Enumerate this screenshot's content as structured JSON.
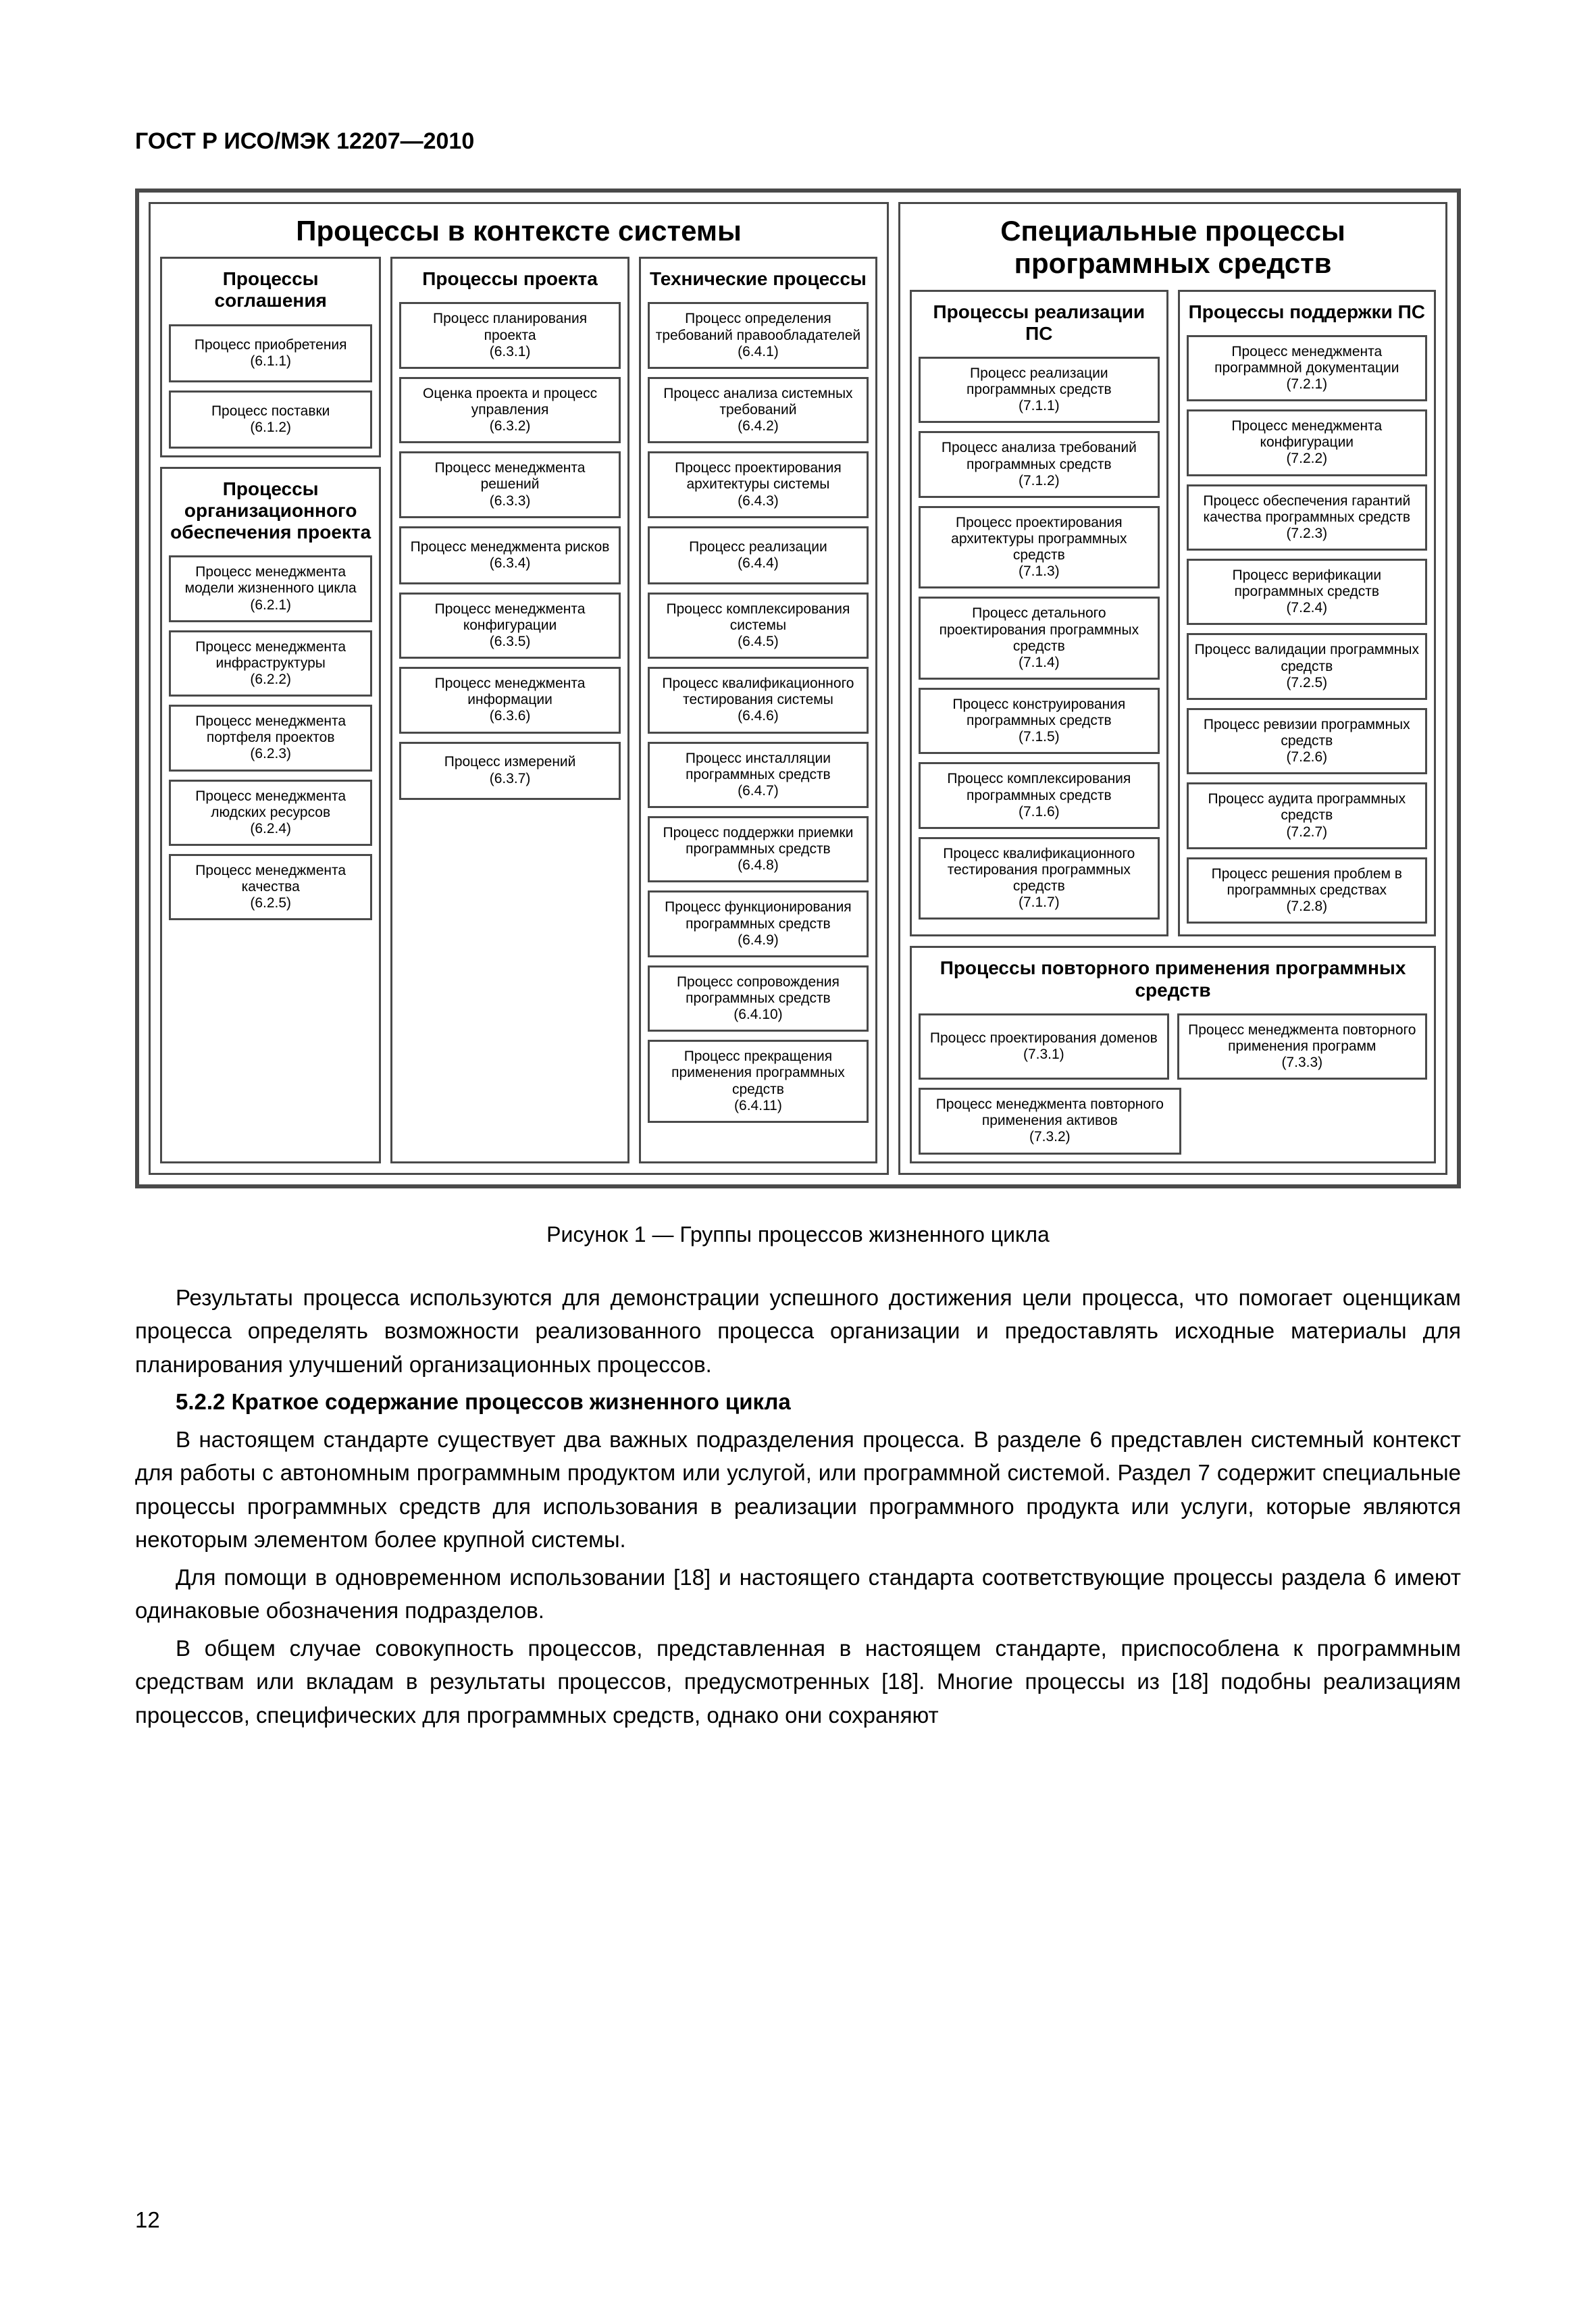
{
  "doc_header": "ГОСТ Р ИСО/МЭК 12207—2010",
  "page_number": "12",
  "figure": {
    "caption": "Рисунок 1 — Группы процессов жизненного цикла",
    "left_panel_title": "Процессы в контексте системы",
    "right_panel_title": "Специальные процессы программных средств",
    "categories": {
      "agreement": {
        "title": "Процессы соглашения",
        "items": [
          {
            "name": "Процесс приобретения",
            "ref": "(6.1.1)"
          },
          {
            "name": "Процесс поставки",
            "ref": "(6.1.2)"
          }
        ]
      },
      "org": {
        "title": "Процессы организационного обеспечения проекта",
        "items": [
          {
            "name": "Процесс менеджмента модели жизненного цикла",
            "ref": "(6.2.1)"
          },
          {
            "name": "Процесс менеджмента инфраструктуры",
            "ref": "(6.2.2)"
          },
          {
            "name": "Процесс менеджмента портфеля проектов",
            "ref": "(6.2.3)"
          },
          {
            "name": "Процесс менеджмента людских ресурсов",
            "ref": "(6.2.4)"
          },
          {
            "name": "Процесс менеджмента качества",
            "ref": "(6.2.5)"
          }
        ]
      },
      "project": {
        "title": "Процессы проекта",
        "items": [
          {
            "name": "Процесс планирования проекта",
            "ref": "(6.3.1)"
          },
          {
            "name": "Оценка проекта и процесс управления",
            "ref": "(6.3.2)"
          },
          {
            "name": "Процесс менеджмента решений",
            "ref": "(6.3.3)"
          },
          {
            "name": "Процесс менеджмента рисков",
            "ref": "(6.3.4)"
          },
          {
            "name": "Процесс менеджмента конфигурации",
            "ref": "(6.3.5)"
          },
          {
            "name": "Процесс менеджмента информации",
            "ref": "(6.3.6)"
          },
          {
            "name": "Процесс измерений",
            "ref": "(6.3.7)"
          }
        ]
      },
      "technical": {
        "title": "Технические процессы",
        "items": [
          {
            "name": "Процесс определения требований правообладателей",
            "ref": "(6.4.1)"
          },
          {
            "name": "Процесс анализа системных требований",
            "ref": "(6.4.2)"
          },
          {
            "name": "Процесс проектирования архитектуры системы",
            "ref": "(6.4.3)"
          },
          {
            "name": "Процесс реализации",
            "ref": "(6.4.4)"
          },
          {
            "name": "Процесс комплексирования системы",
            "ref": "(6.4.5)"
          },
          {
            "name": "Процесс квалификационного тестирования системы",
            "ref": "(6.4.6)"
          },
          {
            "name": "Процесс инсталляции программных средств",
            "ref": "(6.4.7)"
          },
          {
            "name": "Процесс поддержки приемки программных средств",
            "ref": "(6.4.8)"
          },
          {
            "name": "Процесс функционирования программных средств",
            "ref": "(6.4.9)"
          },
          {
            "name": "Процесс сопровождения программных средств",
            "ref": "(6.4.10)"
          },
          {
            "name": "Процесс прекращения применения программных средств",
            "ref": "(6.4.11)"
          }
        ]
      },
      "impl": {
        "title": "Процессы реализации ПС",
        "items": [
          {
            "name": "Процесс реализации программных средств",
            "ref": "(7.1.1)"
          },
          {
            "name": "Процесс анализа требований программных средств",
            "ref": "(7.1.2)"
          },
          {
            "name": "Процесс проекти­рования архитектуры программных средств",
            "ref": "(7.1.3)"
          },
          {
            "name": "Процесс детального проектирования программных средств",
            "ref": "(7.1.4)"
          },
          {
            "name": "Процесс конструирования программных средств",
            "ref": "(7.1.5)"
          },
          {
            "name": "Процесс комплексирования программных средств",
            "ref": "(7.1.6)"
          },
          {
            "name": "Процесс квалифика­ционного тестирования программных средств",
            "ref": "(7.1.7)"
          }
        ]
      },
      "support": {
        "title": "Процессы поддержки ПС",
        "items": [
          {
            "name": "Процесс менеджмента программной документации",
            "ref": "(7.2.1)"
          },
          {
            "name": "Процесс менеджмента конфигурации",
            "ref": "(7.2.2)"
          },
          {
            "name": "Процесс обеспечения гарантий качества программных средств",
            "ref": "(7.2.3)"
          },
          {
            "name": "Процесс верификации программных средств",
            "ref": "(7.2.4)"
          },
          {
            "name": "Процесс валидации программных средств",
            "ref": "(7.2.5)"
          },
          {
            "name": "Процесс ревизии программных средств",
            "ref": "(7.2.6)"
          },
          {
            "name": "Процесс аудита программных средств",
            "ref": "(7.2.7)"
          },
          {
            "name": "Процесс решения проблем в программных средствах",
            "ref": "(7.2.8)"
          }
        ]
      },
      "reuse": {
        "title": "Процессы повторного применения программных средств",
        "items": [
          {
            "name": "Процесс проектирования доменов",
            "ref": "(7.3.1)"
          },
          {
            "name": "Процесс менеджмента повторного применения активов",
            "ref": "(7.3.2)"
          },
          {
            "name": "Процесс менеджмента повторного применения программ",
            "ref": "(7.3.3)"
          }
        ]
      }
    }
  },
  "body": {
    "p1": "Результаты процесса используются для демонстрации успешного достижения цели процесса, что помогает оценщикам процесса определять возможности реализованного процесса организации и предоставлять исходные материалы для планирования улучшений организационных процессов.",
    "h522": "5.2.2 Краткое содержание процессов жизненного цикла",
    "p2": "В настоящем стандарте существует два важных подразделения процесса. В разделе 6 представлен системный контекст для работы с автономным программным продуктом или услугой, или программной системой. Раздел 7 содержит специальные процессы программных средств для использования в реализации программного продукта или услуги, которые являются некоторым элементом более крупной системы.",
    "p3": "Для помощи в одновременном использовании [18] и настоящего стандарта соответствующие процессы раздела 6 имеют одинаковые обозначения подразделов.",
    "p4": "В общем случае совокупность процессов, представленная в настоящем стандарте, приспособлена к программным средствам или вкладам в результаты процессов, предусмотренных [18]. Многие процессы из [18] подобны реализациям процессов, специфических для программных средств, однако они сохраняют"
  },
  "colors": {
    "border": "#4a4a4a",
    "background": "#ffffff",
    "text": "#000000"
  },
  "font_sizes_pt": {
    "doc_header": 34,
    "super_title": 42,
    "category_title": 28,
    "process_text": 21,
    "caption": 32,
    "body": 33
  }
}
